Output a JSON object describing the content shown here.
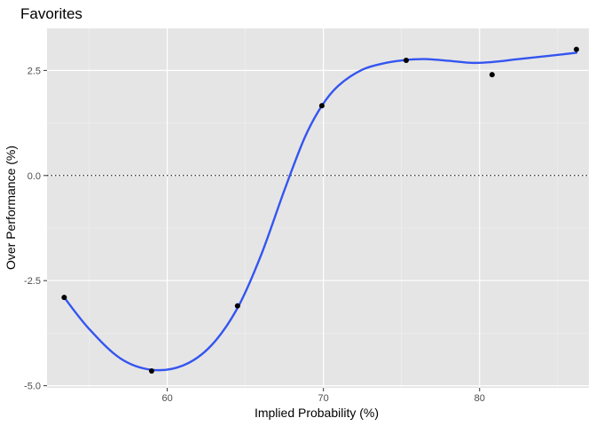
{
  "chart_data": {
    "type": "scatter",
    "title": "Favorites",
    "xlabel": "Implied Probability (%)",
    "ylabel": "Over Performance (%)",
    "xlim": [
      52.3,
      87.0
    ],
    "ylim": [
      -5.05,
      3.5
    ],
    "x_ticks": [
      60,
      70,
      80
    ],
    "x_tick_labels": [
      "60",
      "70",
      "80"
    ],
    "y_ticks": [
      -5.0,
      -2.5,
      0.0,
      2.5
    ],
    "y_tick_labels": [
      "-5.0",
      "-2.5",
      "0.0",
      "2.5"
    ],
    "grid": true,
    "reference_line": {
      "y": 0,
      "style": "dotted"
    },
    "points": [
      {
        "x": 53.4,
        "y": -2.9
      },
      {
        "x": 59.0,
        "y": -4.65
      },
      {
        "x": 64.5,
        "y": -3.1
      },
      {
        "x": 69.9,
        "y": 1.66
      },
      {
        "x": 75.3,
        "y": 2.74
      },
      {
        "x": 80.8,
        "y": 2.4
      },
      {
        "x": 86.2,
        "y": 3.0
      }
    ],
    "smooth_curve": [
      {
        "x": 53.4,
        "y": -2.9
      },
      {
        "x": 55.0,
        "y": -3.65
      },
      {
        "x": 57.0,
        "y": -4.35
      },
      {
        "x": 59.0,
        "y": -4.62
      },
      {
        "x": 61.0,
        "y": -4.52
      },
      {
        "x": 62.8,
        "y": -4.05
      },
      {
        "x": 64.5,
        "y": -3.15
      },
      {
        "x": 66.0,
        "y": -1.9
      },
      {
        "x": 67.5,
        "y": -0.35
      },
      {
        "x": 68.8,
        "y": 0.9
      },
      {
        "x": 69.9,
        "y": 1.66
      },
      {
        "x": 71.0,
        "y": 2.15
      },
      {
        "x": 72.5,
        "y": 2.52
      },
      {
        "x": 74.0,
        "y": 2.68
      },
      {
        "x": 75.3,
        "y": 2.75
      },
      {
        "x": 76.5,
        "y": 2.77
      },
      {
        "x": 78.0,
        "y": 2.73
      },
      {
        "x": 79.5,
        "y": 2.68
      },
      {
        "x": 80.8,
        "y": 2.7
      },
      {
        "x": 82.5,
        "y": 2.77
      },
      {
        "x": 84.5,
        "y": 2.85
      },
      {
        "x": 86.2,
        "y": 2.92
      }
    ],
    "colors": {
      "panel": "#e5e5e5",
      "grid_major": "#ffffff",
      "grid_minor": "#f0f0f0",
      "curve": "#3455f0",
      "point": "#000000",
      "reference_line": "#000000"
    }
  }
}
